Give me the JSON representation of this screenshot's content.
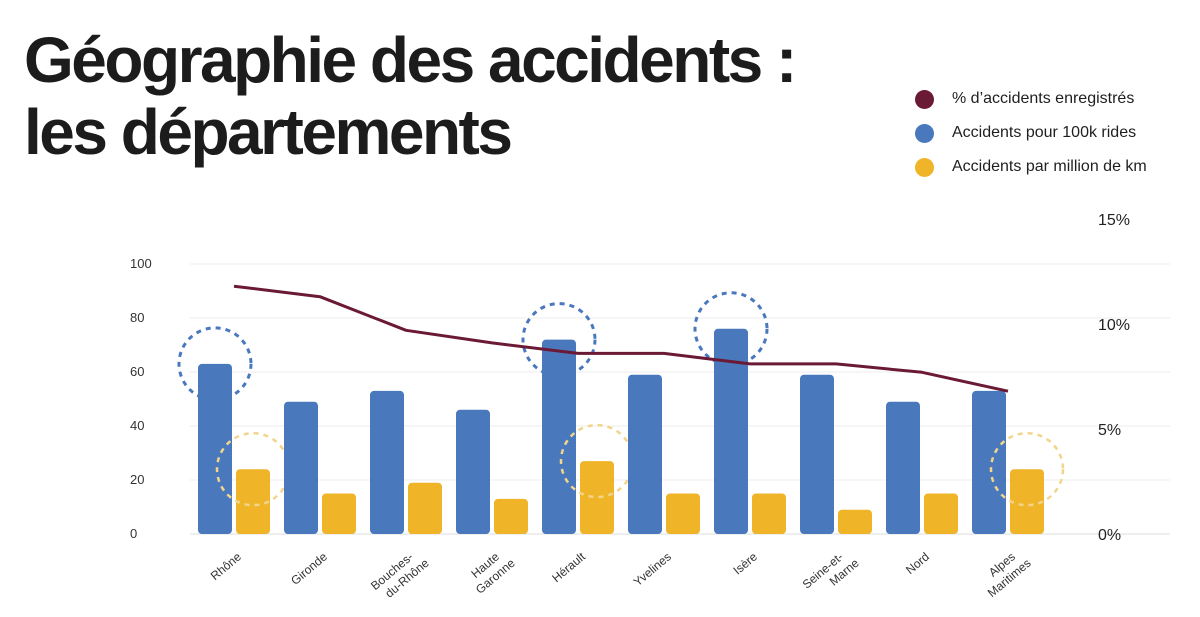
{
  "title_line1": "Géographie des accidents :",
  "title_line2": "les départements",
  "colors": {
    "pct_line": "#6b1a35",
    "blue": "#4a78bd",
    "yellow": "#f0b429",
    "gridline": "#ececec"
  },
  "chart_data": {
    "type": "bar",
    "categories": [
      [
        "Rhône"
      ],
      [
        "Gironde"
      ],
      [
        "Bouches-",
        "du-Rhône"
      ],
      [
        "Haute",
        "Garonne"
      ],
      [
        "Hérault"
      ],
      [
        "Yvelines"
      ],
      [
        "Isère"
      ],
      [
        "Seine-et-",
        "Marne"
      ],
      [
        "Nord"
      ],
      [
        "Alpes",
        "Maritimes"
      ]
    ],
    "series": [
      {
        "name": "Accidents pour 100k rides",
        "type": "bar",
        "axis": "left",
        "color": "#4a78bd",
        "values": [
          63,
          49,
          53,
          46,
          72,
          59,
          76,
          59,
          49,
          53
        ],
        "highlighted": [
          0,
          4,
          6
        ]
      },
      {
        "name": "Accidents par million de km",
        "type": "bar",
        "axis": "left",
        "color": "#f0b429",
        "values": [
          24,
          15,
          19,
          13,
          27,
          15,
          15,
          9,
          15,
          24
        ],
        "highlighted": [
          0,
          4,
          9
        ]
      },
      {
        "name": "% d'accidents enregistrés",
        "type": "line",
        "axis": "right",
        "color": "#6b1a35",
        "values": [
          11.8,
          11.3,
          9.7,
          9.1,
          8.6,
          8.6,
          8.1,
          8.1,
          7.7,
          6.8
        ]
      }
    ],
    "left_axis": {
      "ylim": [
        0,
        100
      ],
      "ticks": [
        "0",
        "20",
        "40",
        "60",
        "80",
        "100"
      ]
    },
    "right_axis": {
      "ylim": [
        0,
        15
      ],
      "ticks": [
        "0%",
        "5%",
        "10%",
        "15%"
      ]
    },
    "legend": [
      {
        "label": "% d’accidents enregistrés",
        "color": "#6b1a35"
      },
      {
        "label": "Accidents pour 100k rides",
        "color": "#4a78bd"
      },
      {
        "label": "Accidents par million de km",
        "color": "#f0b429"
      }
    ],
    "legend_position": "top-right",
    "grid": true
  }
}
